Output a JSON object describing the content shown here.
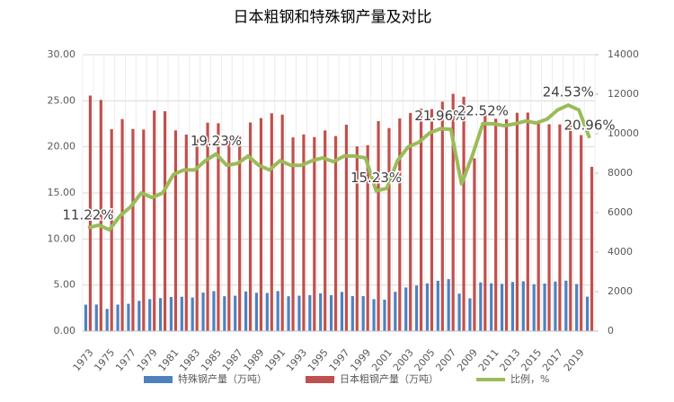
{
  "chart_data": {
    "type": "bar-line",
    "title": "日本粗钢和特殊钢产量及对比",
    "categories": [
      "1973",
      null,
      "1975",
      null,
      "1977",
      null,
      "1979",
      null,
      "1981",
      null,
      "1983",
      null,
      "1985",
      null,
      "1987",
      null,
      "1989",
      null,
      "1991",
      null,
      "1993",
      null,
      "1995",
      null,
      "1997",
      null,
      "1999",
      null,
      "2001",
      null,
      "2003",
      null,
      "2005",
      null,
      "2007",
      null,
      "2009",
      null,
      "2011",
      null,
      "2013",
      null,
      "2015",
      null,
      "2017",
      null,
      "2019",
      null
    ],
    "series": [
      {
        "name": "特殊钢产量（万吨）",
        "type": "bar",
        "axis": "y2",
        "color": "#4f81bd",
        "values": [
          1339,
          1347,
          1125,
          1343,
          1383,
          1532,
          1620,
          1671,
          1729,
          1742,
          1701,
          1953,
          2025,
          1769,
          1793,
          2008,
          1942,
          1931,
          2029,
          1766,
          1793,
          1818,
          1911,
          1818,
          1986,
          1777,
          1771,
          1620,
          1594,
          1993,
          2210,
          2311,
          2418,
          2552,
          2632,
          1900,
          1663,
          2468,
          2421,
          2393,
          2489,
          2524,
          2375,
          2410,
          2513,
          2558,
          2383,
          1744
        ]
      },
      {
        "name": "日本粗钢产量（万吨）",
        "type": "bar",
        "axis": "y2",
        "color": "#c0504d",
        "values": [
          11932,
          11713,
          10231,
          10740,
          10241,
          10211,
          11175,
          11140,
          10168,
          9955,
          9718,
          10559,
          10528,
          9828,
          9851,
          10568,
          10791,
          11034,
          10965,
          9813,
          9962,
          9829,
          10164,
          9880,
          10455,
          9355,
          9419,
          10640,
          10287,
          10774,
          11051,
          11272,
          11247,
          11622,
          12020,
          11873,
          8753,
          10960,
          10760,
          10730,
          11060,
          11070,
          10510,
          10480,
          10470,
          10430,
          9930,
          8320
        ]
      },
      {
        "name": "比例，%",
        "type": "line",
        "color": "#9bbb59",
        "values": [
          11.22,
          11.5,
          11.0,
          12.5,
          13.5,
          15.0,
          14.5,
          15.0,
          17.0,
          17.5,
          17.5,
          18.5,
          19.23,
          18.0,
          18.2,
          19.0,
          18.0,
          17.5,
          18.5,
          18.0,
          18.0,
          18.5,
          18.8,
          18.4,
          19.0,
          19.0,
          18.8,
          15.23,
          15.5,
          18.5,
          20.0,
          20.5,
          21.5,
          21.96,
          21.9,
          16.0,
          19.0,
          22.52,
          22.5,
          22.3,
          22.5,
          22.8,
          22.6,
          23.0,
          24.0,
          24.53,
          24.0,
          20.96
        ],
        "value_labels": [
          "11.22%",
          null,
          null,
          null,
          null,
          null,
          null,
          null,
          null,
          null,
          null,
          null,
          "19.23%",
          null,
          null,
          null,
          null,
          null,
          null,
          null,
          null,
          null,
          null,
          null,
          null,
          null,
          null,
          "15.23%",
          null,
          null,
          null,
          null,
          null,
          "21.96%",
          null,
          null,
          null,
          "22.52%",
          null,
          null,
          null,
          null,
          null,
          null,
          null,
          "24.53%",
          null,
          "20.96%"
        ]
      }
    ],
    "ylim": [
      0,
      30
    ],
    "yticks": [
      {
        "value": 0,
        "label": "0.00"
      },
      {
        "value": 5,
        "label": "5.00"
      },
      {
        "value": 10,
        "label": "10.00"
      },
      {
        "value": 15,
        "label": "15.00"
      },
      {
        "value": 20,
        "label": "20.00"
      },
      {
        "value": 25,
        "label": "25.00"
      },
      {
        "value": 30,
        "label": "30.00"
      }
    ],
    "y2lim": [
      0,
      14000
    ],
    "y2ticks": [
      0,
      2000,
      4000,
      6000,
      8000,
      10000,
      12000,
      14000
    ],
    "grid": true
  }
}
